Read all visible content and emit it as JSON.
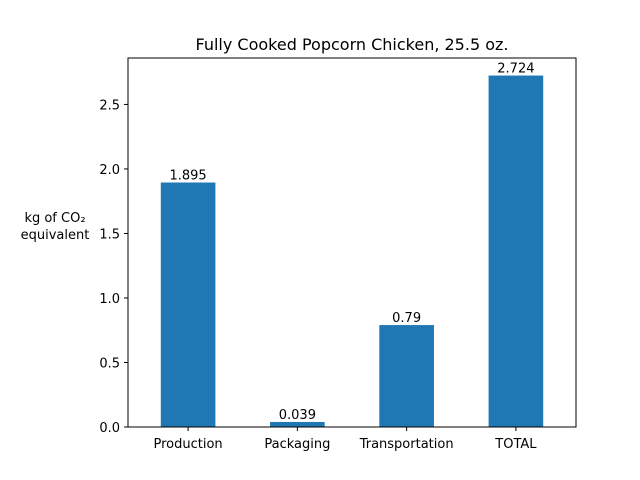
{
  "chart_data": {
    "type": "bar",
    "title": "Fully Cooked Popcorn Chicken, 25.5 oz.",
    "xlabel": "",
    "ylabel_lines": [
      "kg of CO₂",
      "equivalent"
    ],
    "categories": [
      "Production",
      "Packaging",
      "Transportation",
      "TOTAL"
    ],
    "values": [
      1.895,
      0.039,
      0.79,
      2.724
    ],
    "data_labels": [
      "1.895",
      "0.039",
      "0.79",
      "2.724"
    ],
    "ylim": [
      0,
      2.86
    ],
    "yticks": [
      0.0,
      0.5,
      1.0,
      1.5,
      2.0,
      2.5
    ],
    "ytick_labels": [
      "0.0",
      "0.5",
      "1.0",
      "1.5",
      "2.0",
      "2.5"
    ],
    "bar_color": "#1f77b4",
    "grid": false,
    "legend": "none"
  }
}
